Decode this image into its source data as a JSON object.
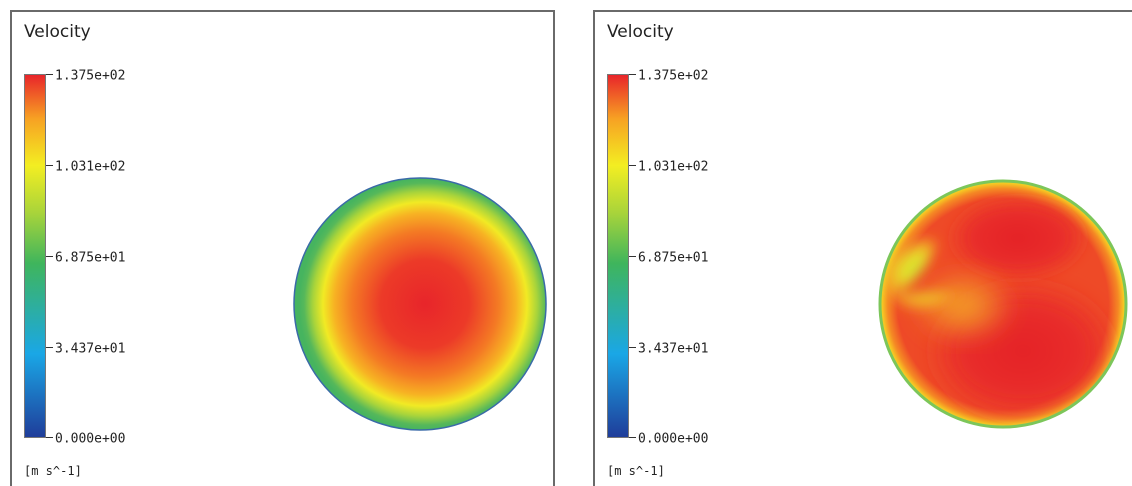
{
  "panels": [
    {
      "title": "Velocity",
      "legend_labels": [
        "1.375e+02",
        "1.031e+02",
        "6.875e+01",
        "3.437e+01",
        "0.000e+00"
      ],
      "unit": "[m s^-1]"
    },
    {
      "title": "Velocity",
      "legend_labels": [
        "1.375e+02",
        "1.031e+02",
        "6.875e+01",
        "3.437e+01",
        "0.000e+00"
      ],
      "unit": "[m s^-1]"
    }
  ],
  "colors": {
    "max": "#e8252a",
    "high": "#f7a123",
    "mid_high": "#f3ee22",
    "mid": "#3fb55c",
    "low": "#1aa7e6",
    "min": "#1f3d9a"
  }
}
